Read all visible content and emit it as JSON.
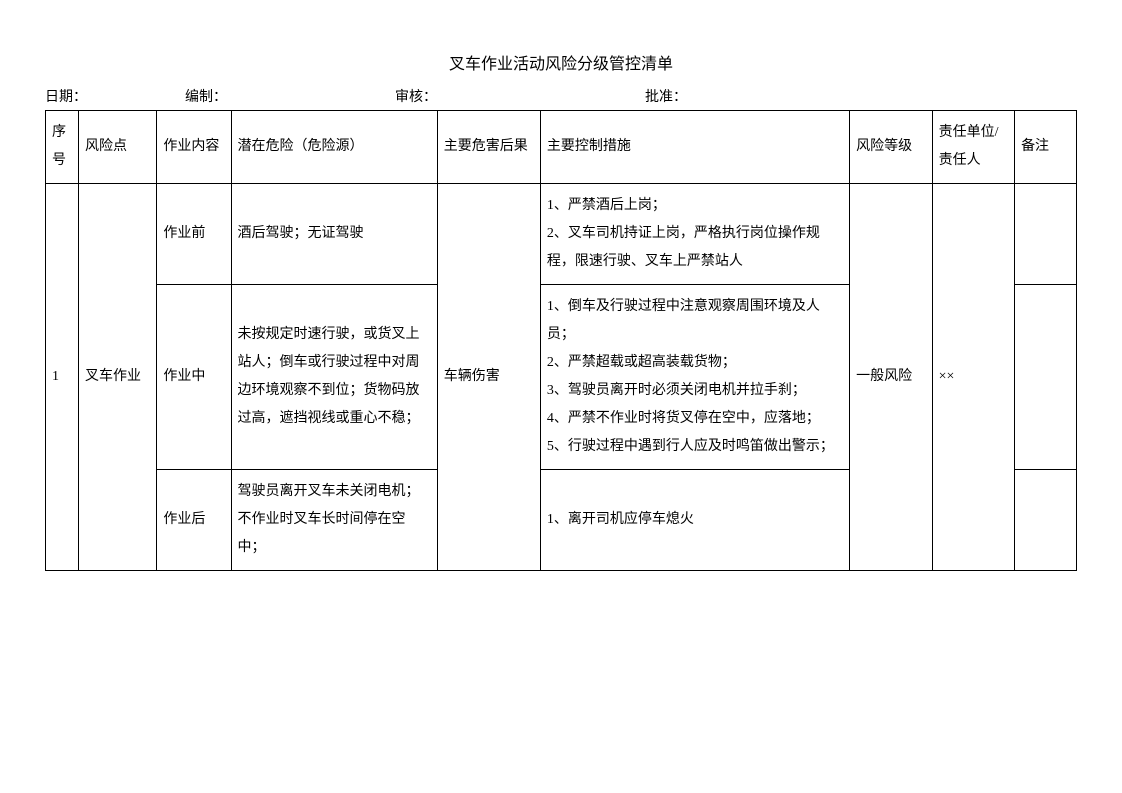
{
  "title": "叉车作业活动风险分级管控清单",
  "meta": {
    "date_label": "日期：",
    "editor_label": "编制：",
    "reviewer_label": "审核：",
    "approver_label": "批准："
  },
  "headers": {
    "seq": "序号",
    "risk_point": "风险点",
    "work_content": "作业内容",
    "hazard": "潜在危险（危险源）",
    "consequence": "主要危害后果",
    "control": "主要控制措施",
    "risk_level": "风险等级",
    "responsible": "责任单位/责任人",
    "remark": "备注"
  },
  "rows": {
    "seq": "1",
    "risk_point": "叉车作业",
    "consequence": "车辆伤害",
    "risk_level": "一般风险",
    "responsible": "××",
    "sub": [
      {
        "work_content": "作业前",
        "hazard": "酒后驾驶；无证驾驶",
        "control": "1、严禁酒后上岗；\n2、叉车司机持证上岗，严格执行岗位操作规程，限速行驶、叉车上严禁站人",
        "remark": ""
      },
      {
        "work_content": "作业中",
        "hazard": "未按规定时速行驶，或货叉上站人；倒车或行驶过程中对周边环境观察不到位；货物码放过高，遮挡视线或重心不稳；",
        "control": "1、倒车及行驶过程中注意观察周围环境及人员；\n2、严禁超载或超高装载货物；\n3、驾驶员离开时必须关闭电机并拉手刹；\n4、严禁不作业时将货叉停在空中，应落地；\n5、行驶过程中遇到行人应及时鸣笛做出警示；",
        "remark": ""
      },
      {
        "work_content": "作业后",
        "hazard": "驾驶员离开叉车未关闭电机；不作业时叉车长时间停在空中；",
        "control": "1、离开司机应停车熄火",
        "remark": ""
      }
    ]
  }
}
